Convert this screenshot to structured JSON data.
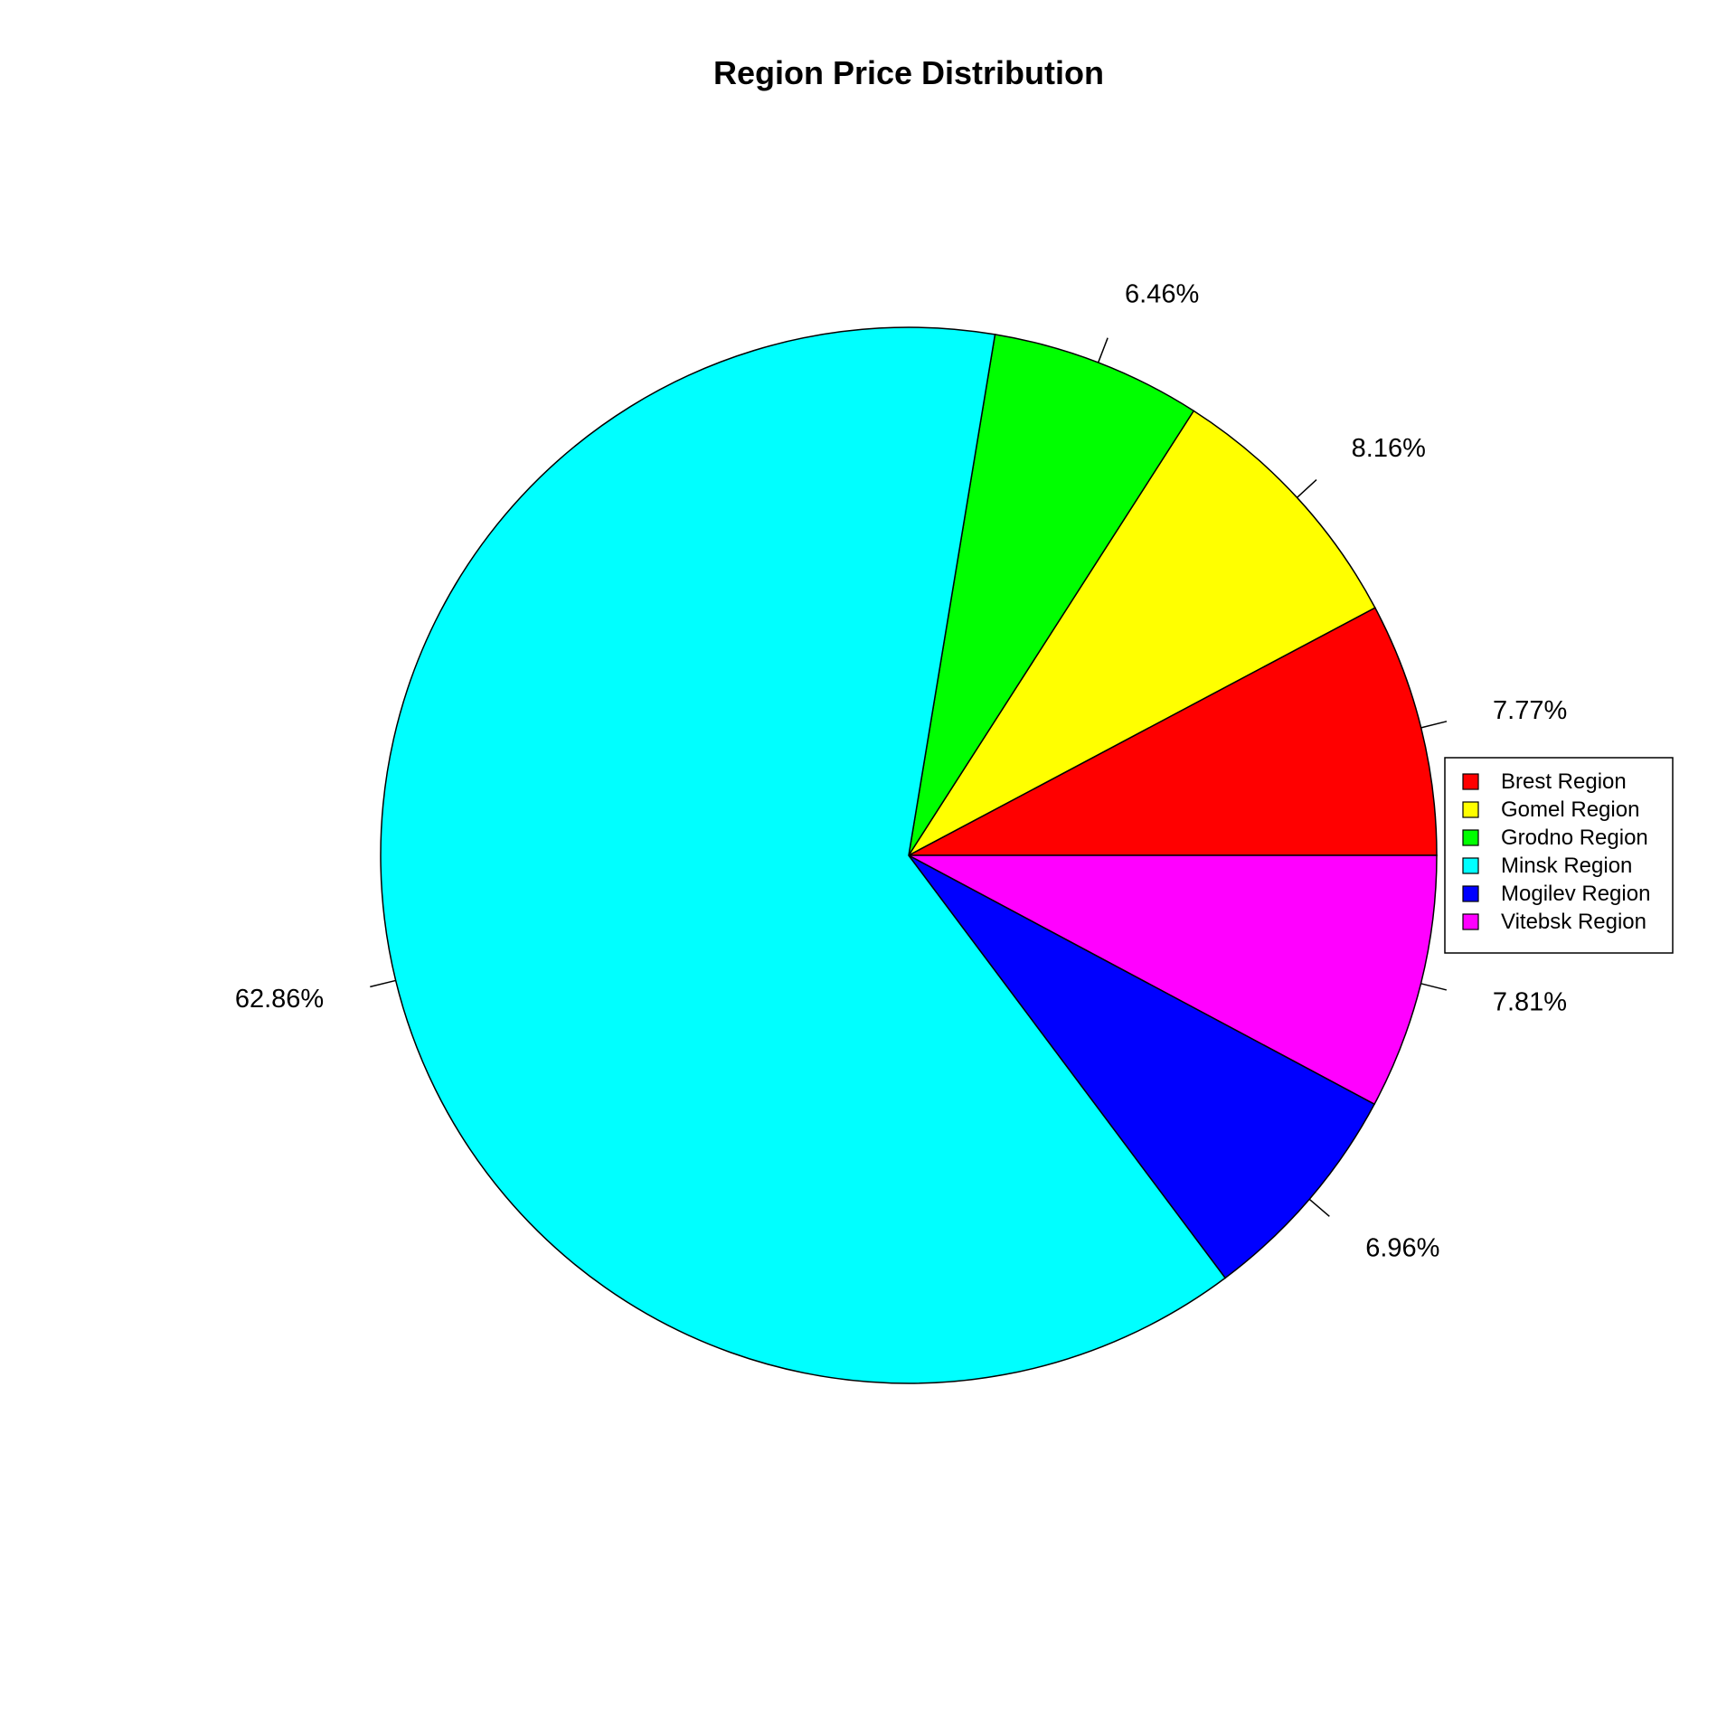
{
  "chart_data": {
    "type": "pie",
    "title": "Region Price Distribution",
    "start_angle_deg": 0,
    "direction": "counterclockwise",
    "legend_position": "right",
    "slices": [
      {
        "name": "Brest Region",
        "label": "7.77%",
        "value": 7.77,
        "color": "#FF0000"
      },
      {
        "name": "Gomel Region",
        "label": "8.16%",
        "value": 8.16,
        "color": "#FFFF00"
      },
      {
        "name": "Grodno Region",
        "label": "6.46%",
        "value": 6.46,
        "color": "#00FF00"
      },
      {
        "name": "Minsk Region",
        "label": "62.86%",
        "value": 62.86,
        "color": "#00FFFF"
      },
      {
        "name": "Mogilev Region",
        "label": "6.96%",
        "value": 6.96,
        "color": "#0000FF"
      },
      {
        "name": "Vitebsk Region",
        "label": "7.81%",
        "value": 7.81,
        "color": "#FF00FF"
      }
    ]
  }
}
